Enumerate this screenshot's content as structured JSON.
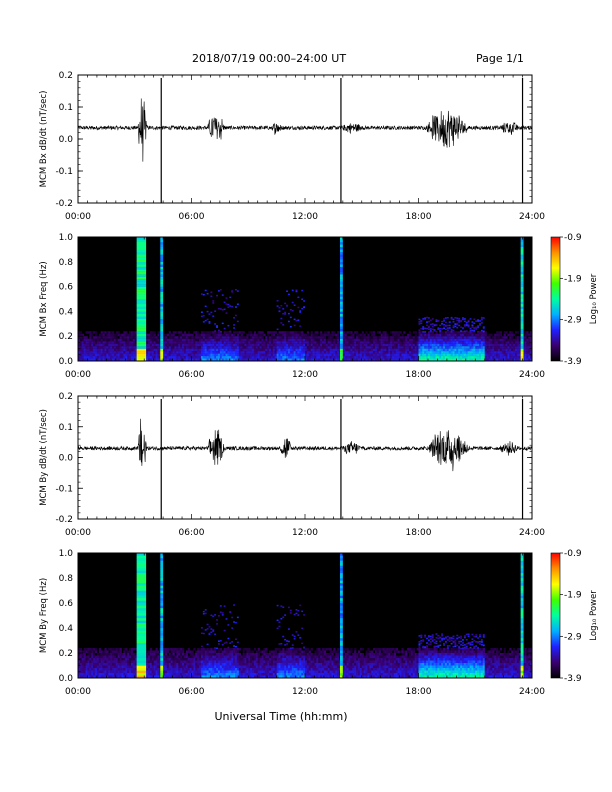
{
  "header": {
    "title": "2018/07/19  00:00–24:00 UT",
    "page": "Page 1/1"
  },
  "xaxis_title": "Universal Time (hh:mm)",
  "colorbar": {
    "label": "Log₁₀ Power",
    "ticks": [
      "-0.9",
      "-1.9",
      "-2.9",
      "-3.9"
    ],
    "range": [
      -3.9,
      -0.9
    ],
    "colors": [
      "#000000",
      "#3a0070",
      "#2020ff",
      "#00b0ff",
      "#00ffa0",
      "#40ff00",
      "#ffff00",
      "#ff9000",
      "#ff0000"
    ]
  },
  "chart_data": [
    {
      "type": "line",
      "ylabel": "MCM Bx dB/dt (nT/sec)",
      "xlim": [
        "00:00",
        "24:00"
      ],
      "ylim": [
        -0.2,
        0.2
      ],
      "xticks": [
        "00:00",
        "06:00",
        "12:00",
        "18:00",
        "24:00"
      ],
      "yticks": [
        "-0.2",
        "-0.1",
        "0.0",
        "0.1",
        "0.2"
      ],
      "baseline": 0.035,
      "spikes_hours": [
        4.4,
        13.9,
        23.5
      ],
      "activity_bursts": [
        {
          "center": 3.4,
          "width": 0.5,
          "amp": 0.11
        },
        {
          "center": 7.3,
          "width": 0.9,
          "amp": 0.06
        },
        {
          "center": 10.5,
          "width": 0.5,
          "amp": 0.02
        },
        {
          "center": 14.5,
          "width": 1.0,
          "amp": 0.015
        },
        {
          "center": 19.5,
          "width": 2.2,
          "amp": 0.07
        },
        {
          "center": 22.8,
          "width": 1.0,
          "amp": 0.02
        }
      ]
    },
    {
      "type": "heatmap",
      "ylabel": "MCM Bx Freq (Hz)",
      "xlim": [
        "00:00",
        "24:00"
      ],
      "ylim": [
        0.0,
        1.0
      ],
      "xticks": [
        "00:00",
        "06:00",
        "12:00",
        "18:00",
        "24:00"
      ],
      "yticks": [
        "0.0",
        "0.2",
        "0.4",
        "0.6",
        "0.8",
        "1.0"
      ],
      "zlim": [
        -3.9,
        -0.9
      ],
      "bands": [
        {
          "start": 3.1,
          "end": 3.6,
          "level": -2.4
        },
        {
          "start": 4.35,
          "end": 4.5,
          "level": -2.7
        },
        {
          "start": 13.85,
          "end": 14.0,
          "level": -2.8
        },
        {
          "start": 23.4,
          "end": 23.55,
          "level": -2.6
        }
      ]
    },
    {
      "type": "line",
      "ylabel": "MCM By dB/dt (nT/sec)",
      "xlim": [
        "00:00",
        "24:00"
      ],
      "ylim": [
        -0.2,
        0.2
      ],
      "xticks": [
        "00:00",
        "06:00",
        "12:00",
        "18:00",
        "24:00"
      ],
      "yticks": [
        "-0.2",
        "-0.1",
        "0.0",
        "0.1",
        "0.2"
      ],
      "baseline": 0.03,
      "spikes_hours": [
        4.4,
        13.9,
        23.5
      ],
      "activity_bursts": [
        {
          "center": 3.4,
          "width": 0.5,
          "amp": 0.12
        },
        {
          "center": 7.3,
          "width": 0.9,
          "amp": 0.07
        },
        {
          "center": 11.0,
          "width": 0.6,
          "amp": 0.04
        },
        {
          "center": 14.5,
          "width": 1.0,
          "amp": 0.02
        },
        {
          "center": 19.6,
          "width": 2.2,
          "amp": 0.08
        },
        {
          "center": 22.8,
          "width": 1.0,
          "amp": 0.02
        }
      ]
    },
    {
      "type": "heatmap",
      "ylabel": "MCM By Freq (Hz)",
      "xlim": [
        "00:00",
        "24:00"
      ],
      "ylim": [
        0.0,
        1.0
      ],
      "xticks": [
        "00:00",
        "06:00",
        "12:00",
        "18:00",
        "24:00"
      ],
      "yticks": [
        "0.0",
        "0.2",
        "0.4",
        "0.6",
        "0.8",
        "1.0"
      ],
      "zlim": [
        -3.9,
        -0.9
      ],
      "bands": [
        {
          "start": 3.1,
          "end": 3.6,
          "level": -2.4
        },
        {
          "start": 4.35,
          "end": 4.5,
          "level": -2.7
        },
        {
          "start": 13.85,
          "end": 14.0,
          "level": -2.8
        },
        {
          "start": 23.4,
          "end": 23.55,
          "level": -2.6
        }
      ]
    }
  ]
}
